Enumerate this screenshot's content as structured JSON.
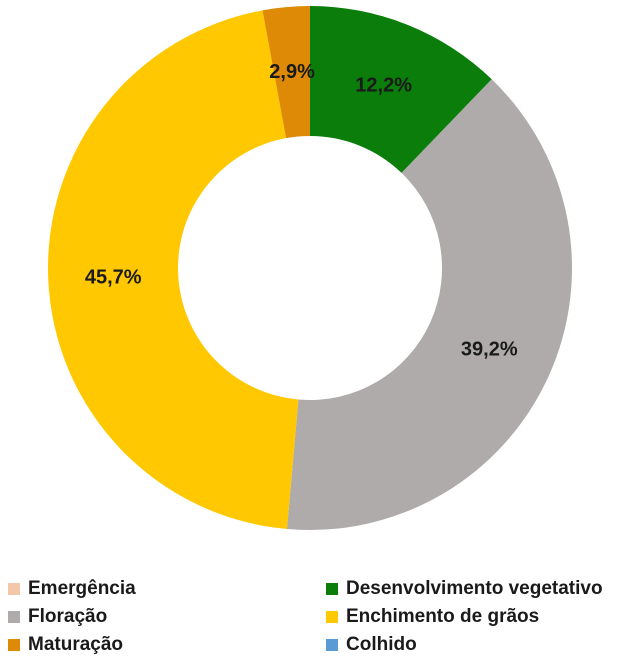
{
  "chart_data": {
    "type": "pie",
    "donut": true,
    "categories": [
      "Emergência",
      "Desenvolvimento vegetativo",
      "Floração",
      "Enchimento de grãos",
      "Maturação",
      "Colhido"
    ],
    "values": [
      0,
      12.2,
      39.2,
      45.7,
      2.9,
      0
    ],
    "value_labels": [
      "",
      "12,2%",
      "39,2%",
      "45,7%",
      "2,9%",
      ""
    ],
    "colors": [
      "#f4c7a8",
      "#0a7d0a",
      "#afabab",
      "#ffc800",
      "#de8a06",
      "#5b9bd5"
    ],
    "legend_position": "bottom",
    "legend_columns": 2,
    "start": "top-clockwise"
  }
}
